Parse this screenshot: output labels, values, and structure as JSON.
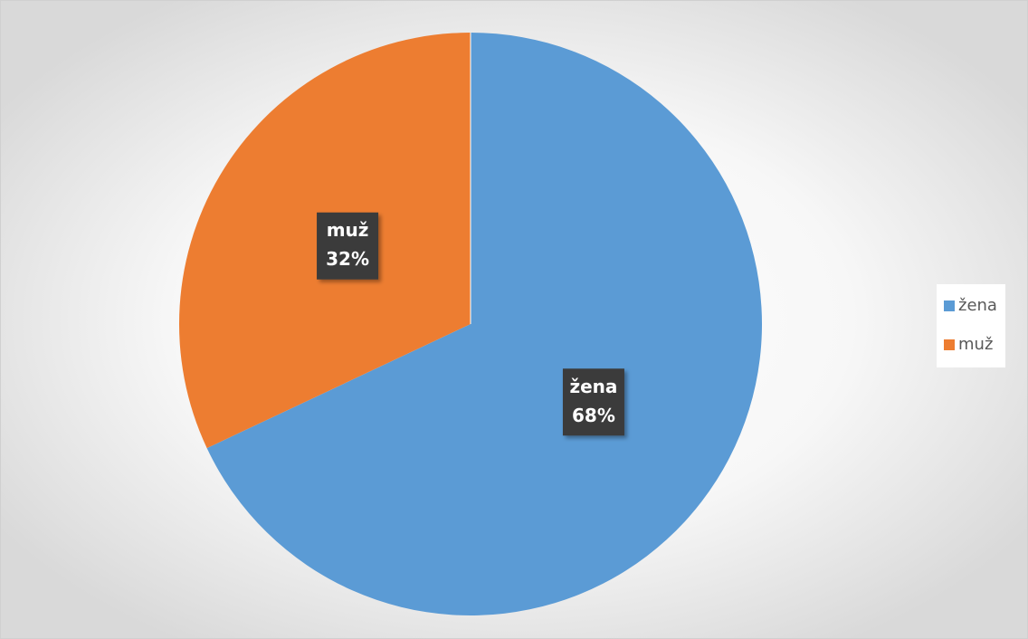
{
  "chart_data": {
    "type": "pie",
    "categories": [
      "žena",
      "muž"
    ],
    "values": [
      68,
      32
    ],
    "value_labels": [
      "68%",
      "32%"
    ],
    "colors": [
      "#5b9bd5",
      "#ed7d31"
    ],
    "legend": "right"
  }
}
